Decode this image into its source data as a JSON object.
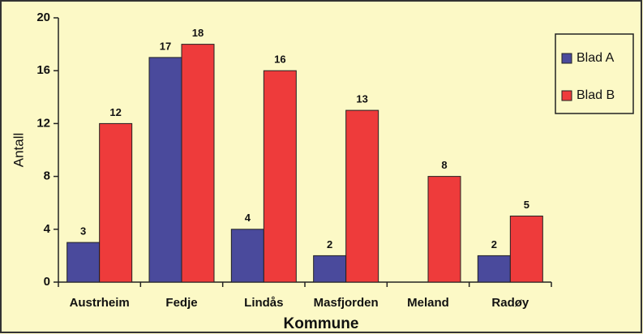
{
  "chart_data": {
    "type": "bar",
    "categories": [
      "Austrheim",
      "Fedje",
      "Lindås",
      "Masfjorden",
      "Meland",
      "Radøy"
    ],
    "series": [
      {
        "name": "Blad A",
        "color": "#4a4a9c",
        "values": [
          3,
          17,
          4,
          2,
          null,
          2
        ]
      },
      {
        "name": "Blad B",
        "color": "#ee3b3b",
        "values": [
          12,
          18,
          16,
          13,
          8,
          5
        ]
      }
    ],
    "ylim": [
      0,
      20
    ],
    "yticks": [
      0,
      4,
      8,
      12,
      16,
      20
    ],
    "ylabel": "Antall",
    "xlabel": "Kommune",
    "grid": false,
    "legend": "right"
  }
}
